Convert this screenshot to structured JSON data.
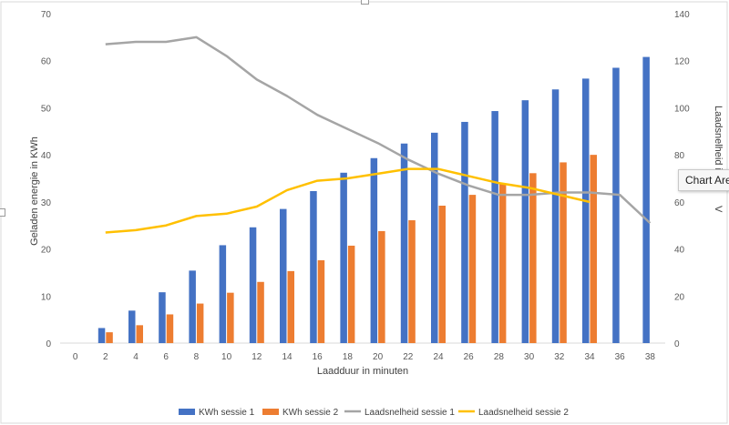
{
  "chart_data": {
    "type": "bar",
    "categories": [
      0,
      2,
      4,
      6,
      8,
      10,
      12,
      14,
      16,
      18,
      20,
      22,
      24,
      26,
      28,
      30,
      32,
      34,
      36,
      38
    ],
    "xlabel": "Laadduur in minuten",
    "ylabel": "Geladen energie in KWh",
    "y2label": "Laadsnelheid in kW",
    "y2label_visible": "Laadsnelheid i",
    "y2label_visible_2": "V",
    "ylim": [
      0,
      70
    ],
    "yticks": [
      0,
      10,
      20,
      30,
      40,
      50,
      60,
      70
    ],
    "y2lim": [
      0,
      140
    ],
    "y2ticks": [
      0,
      20,
      40,
      60,
      80,
      100,
      120,
      140
    ],
    "colors": {
      "kwh1": "#4472C4",
      "kwh2": "#ED7D31",
      "rate1": "#A5A5A5",
      "rate2": "#FFC000"
    },
    "series": [
      {
        "name": "KWh sessie 1",
        "kind": "bar",
        "axis": "left",
        "x": [
          2,
          4,
          6,
          8,
          10,
          12,
          14,
          16,
          18,
          20,
          22,
          24,
          26,
          28,
          30,
          32,
          34,
          36,
          38
        ],
        "values": [
          3.2,
          6.9,
          10.8,
          15.4,
          20.8,
          24.6,
          28.5,
          32.3,
          36.2,
          39.3,
          42.4,
          44.7,
          47.0,
          49.3,
          51.6,
          53.9,
          56.2,
          58.5,
          60.8
        ]
      },
      {
        "name": "KWh sessie 2",
        "kind": "bar",
        "axis": "left",
        "x": [
          2,
          4,
          6,
          8,
          10,
          12,
          14,
          16,
          18,
          20,
          22,
          24,
          26,
          28,
          30,
          32,
          34
        ],
        "values": [
          2.3,
          3.8,
          6.1,
          8.4,
          10.7,
          13.0,
          15.3,
          17.6,
          20.7,
          23.8,
          26.1,
          29.2,
          31.5,
          33.8,
          36.1,
          38.4,
          40.0
        ]
      },
      {
        "name": "Laadsnelheid sessie 1",
        "kind": "line",
        "axis": "right",
        "x": [
          2,
          4,
          6,
          8,
          10,
          12,
          14,
          16,
          18,
          20,
          22,
          24,
          26,
          28,
          30,
          32,
          34,
          36,
          38
        ],
        "values": [
          127,
          128,
          128,
          130,
          122,
          112,
          105,
          97,
          91,
          85,
          78,
          72,
          67,
          63,
          63,
          64,
          64,
          63,
          51
        ]
      },
      {
        "name": "Laadsnelheid sessie 2",
        "kind": "line",
        "axis": "right",
        "x": [
          2,
          4,
          6,
          8,
          10,
          12,
          14,
          16,
          18,
          20,
          22,
          24,
          26,
          28,
          30,
          32,
          34
        ],
        "values": [
          47,
          48,
          50,
          54,
          55,
          58,
          65,
          69,
          70,
          72,
          74,
          74,
          71,
          68,
          66,
          63,
          60
        ]
      }
    ],
    "legend_position": "bottom"
  },
  "tooltip": {
    "label": "Chart Area"
  }
}
